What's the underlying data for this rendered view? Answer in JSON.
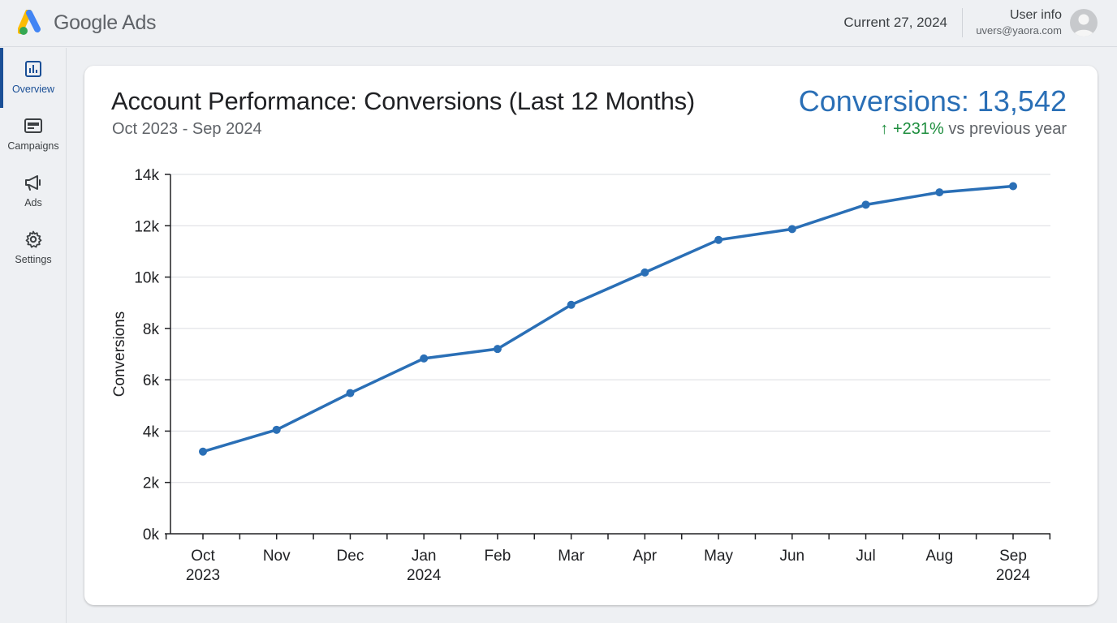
{
  "header": {
    "product_name": "Google Ads",
    "current_date": "Current 27, 2024",
    "user_name": "User info",
    "user_email": "uvers@yaora.com"
  },
  "sidebar": {
    "items": [
      {
        "label": "Overview",
        "icon": "bar-chart-icon",
        "active": true
      },
      {
        "label": "Campaigns",
        "icon": "campaign-icon",
        "active": false
      },
      {
        "label": "Ads",
        "icon": "megaphone-icon",
        "active": false
      },
      {
        "label": "Settings",
        "icon": "gear-icon",
        "active": false
      }
    ]
  },
  "card": {
    "title": "Account Performance: Conversions (Last 12 Months)",
    "subtitle": "Oct 2023 - Sep 2024",
    "kpi": "Conversions: 13,542",
    "change_arrow": "↑",
    "change_value": "+231%",
    "change_text": " vs previous year"
  },
  "colors": {
    "line": "#2a6fb6",
    "accent": "#1a4f96",
    "positive": "#1e8e3e"
  },
  "chart_data": {
    "type": "line",
    "title": "Account Performance: Conversions (Last 12 Months)",
    "xlabel": "",
    "ylabel": "Conversions",
    "x": [
      "Oct 2023",
      "Nov",
      "Dec",
      "Jan 2024",
      "Feb",
      "Mar",
      "Apr",
      "May",
      "Jun",
      "Jul",
      "Aug",
      "Sep 2024"
    ],
    "x_tick_labels": [
      [
        "Oct",
        "2023"
      ],
      [
        "Nov"
      ],
      [
        "Dec"
      ],
      [
        "Jan",
        "2024"
      ],
      [
        "Feb"
      ],
      [
        "Mar"
      ],
      [
        "Apr"
      ],
      [
        "May"
      ],
      [
        "Jun"
      ],
      [
        "Jul"
      ],
      [
        "Aug"
      ],
      [
        "Sep",
        "2024"
      ]
    ],
    "values": [
      3200,
      4050,
      5480,
      6830,
      7200,
      8920,
      10180,
      11450,
      11870,
      12820,
      13300,
      13542
    ],
    "ylim": [
      0,
      14000
    ],
    "y_ticks": [
      0,
      2000,
      4000,
      6000,
      8000,
      10000,
      12000,
      14000
    ],
    "y_tick_labels": [
      "0k",
      "2k",
      "4k",
      "6k",
      "8k",
      "10k",
      "12k",
      "14k"
    ],
    "grid": true,
    "legend": "none"
  }
}
